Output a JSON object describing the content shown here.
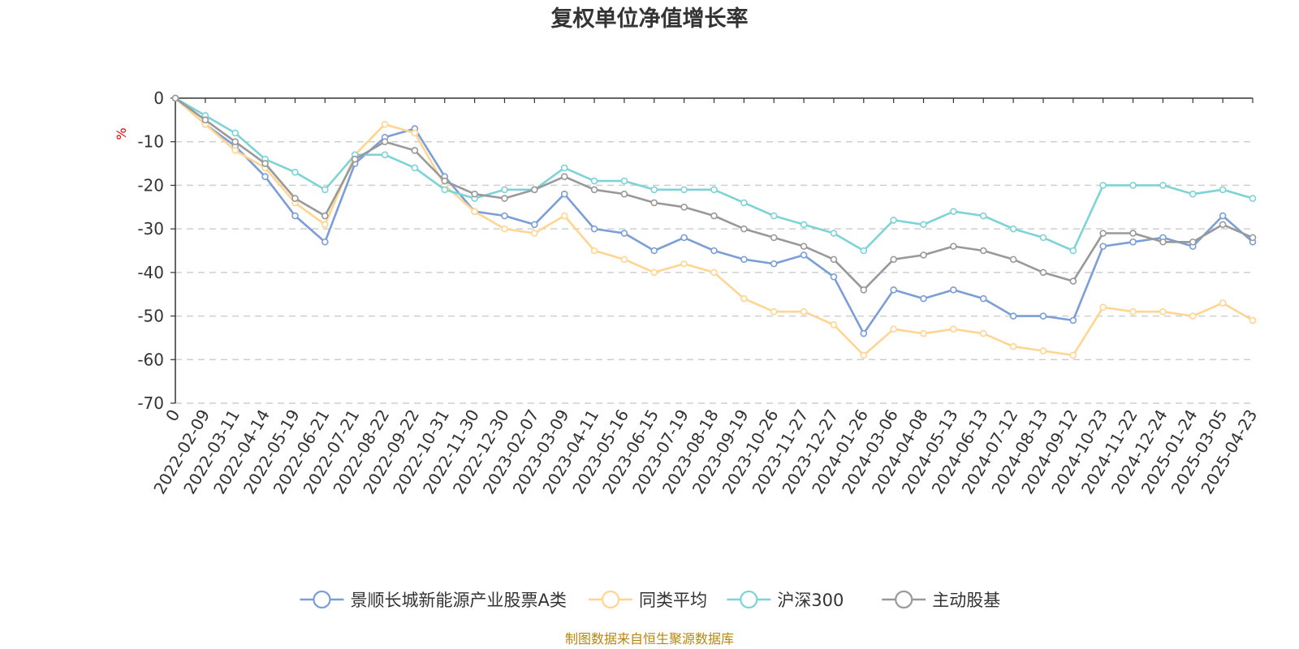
{
  "chart_data": {
    "type": "line",
    "title": "复权单位净值增长率",
    "ylabel": "%",
    "ylim": [
      -70,
      0
    ],
    "yticks": [
      0,
      -10,
      -20,
      -30,
      -40,
      -50,
      -60,
      -70
    ],
    "categories": [
      "0",
      "2022-02-09",
      "2022-03-11",
      "2022-04-14",
      "2022-05-19",
      "2022-06-21",
      "2022-07-21",
      "2022-08-22",
      "2022-09-22",
      "2022-10-31",
      "2022-11-30",
      "2022-12-30",
      "2023-02-07",
      "2023-03-09",
      "2023-04-11",
      "2023-05-16",
      "2023-06-15",
      "2023-07-19",
      "2023-08-18",
      "2023-09-19",
      "2023-10-26",
      "2023-11-27",
      "2023-12-27",
      "2024-01-26",
      "2024-03-06",
      "2024-04-08",
      "2024-05-13",
      "2024-06-13",
      "2024-07-12",
      "2024-08-13",
      "2024-09-12",
      "2024-10-23",
      "2024-11-22",
      "2024-12-24",
      "2025-01-24",
      "2025-03-05",
      "2025-04-23"
    ],
    "grid": true,
    "legend_position": "bottom",
    "series": [
      {
        "name": "景顺长城新能源产业股票A类",
        "color": "#7b9ed6",
        "values": [
          0,
          -6,
          -11,
          -18,
          -27,
          -33,
          -15,
          -9,
          -7,
          -18,
          -26,
          -27,
          -29,
          -22,
          -30,
          -31,
          -35,
          -32,
          -35,
          -37,
          -38,
          -36,
          -41,
          -54,
          -44,
          -46,
          -44,
          -46,
          -50,
          -50,
          -51,
          -34,
          -33,
          -32,
          -34,
          -27,
          -33
        ]
      },
      {
        "name": "同类平均",
        "color": "#ffd591",
        "values": [
          0,
          -6,
          -12,
          -16,
          -24,
          -29,
          -13,
          -6,
          -8,
          -20,
          -26,
          -30,
          -31,
          -27,
          -35,
          -37,
          -40,
          -38,
          -40,
          -46,
          -49,
          -49,
          -52,
          -59,
          -53,
          -54,
          -53,
          -54,
          -57,
          -58,
          -59,
          -48,
          -49,
          -49,
          -50,
          -47,
          -51
        ]
      },
      {
        "name": "沪深300",
        "color": "#7dd3d6",
        "values": [
          0,
          -4,
          -8,
          -14,
          -17,
          -21,
          -13,
          -13,
          -16,
          -21,
          -23,
          -21,
          -21,
          -16,
          -19,
          -19,
          -21,
          -21,
          -21,
          -24,
          -27,
          -29,
          -31,
          -35,
          -28,
          -29,
          -26,
          -27,
          -30,
          -32,
          -35,
          -20,
          -20,
          -20,
          -22,
          -21,
          -23
        ]
      },
      {
        "name": "主动股基",
        "color": "#999999",
        "values": [
          0,
          -5,
          -10,
          -15,
          -23,
          -27,
          -14,
          -10,
          -12,
          -19,
          -22,
          -23,
          -21,
          -18,
          -21,
          -22,
          -24,
          -25,
          -27,
          -30,
          -32,
          -34,
          -37,
          -44,
          -37,
          -36,
          -34,
          -35,
          -37,
          -40,
          -42,
          -31,
          -31,
          -33,
          -33,
          -29,
          -32
        ]
      }
    ],
    "source_note": "制图数据来自恒生聚源数据库"
  }
}
